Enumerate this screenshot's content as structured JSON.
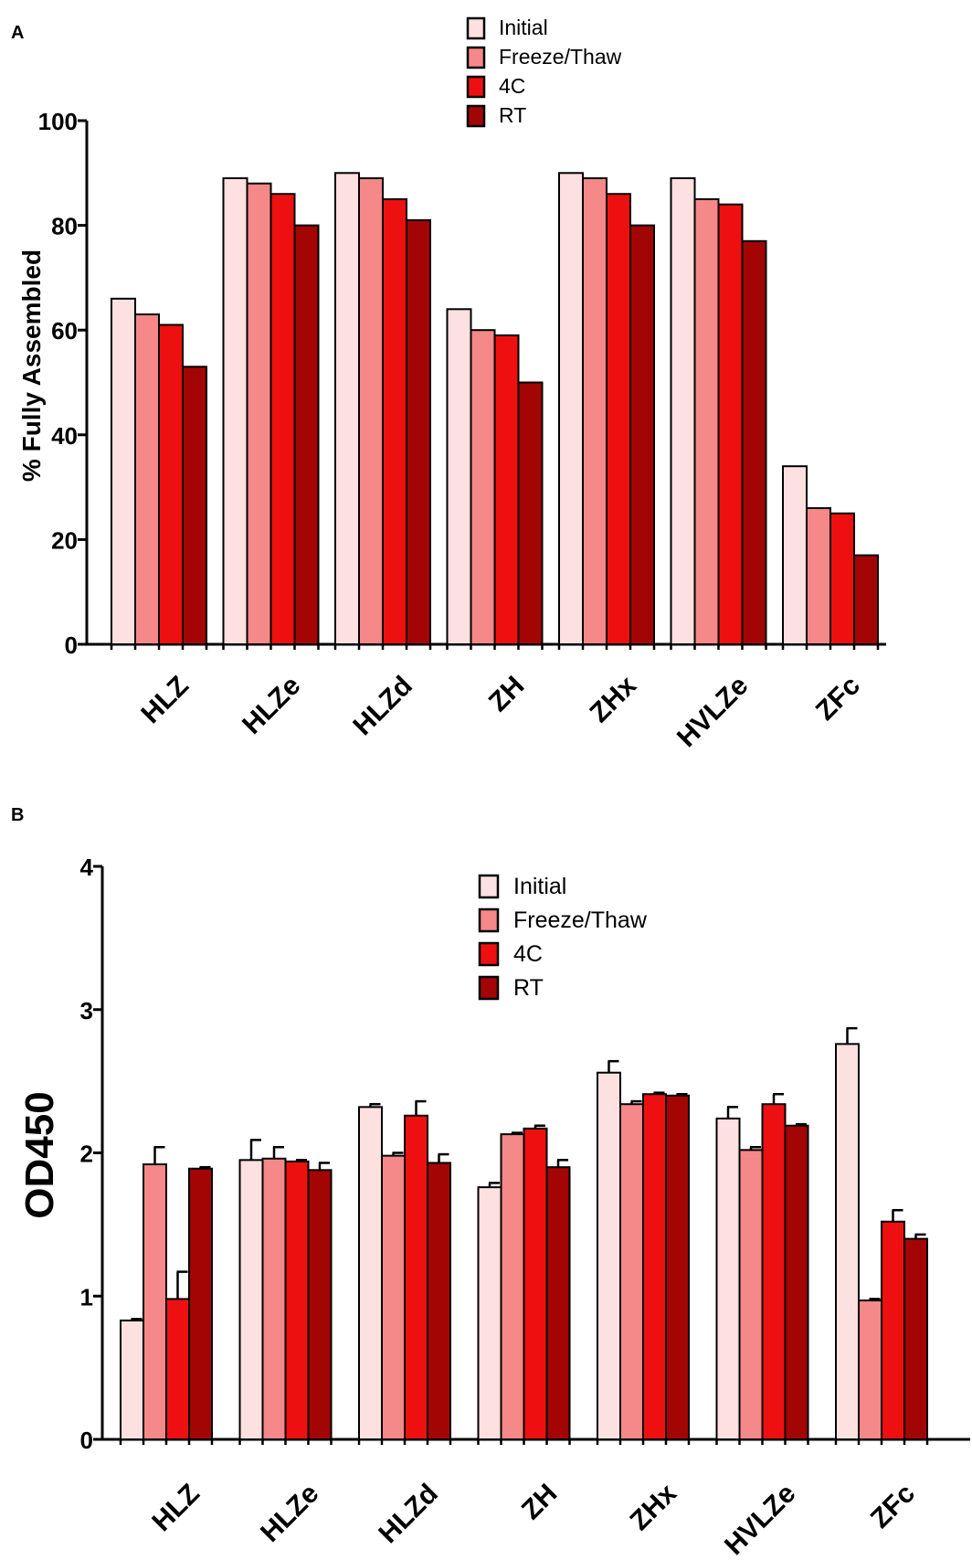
{
  "colors": {
    "Initial": "#fde0e0",
    "Freeze/Thaw": "#f58888",
    "4C": "#ee1010",
    "RT": "#a30505",
    "axis": "#000000"
  },
  "chart_data": [
    {
      "panel": "A",
      "type": "bar",
      "ylabel": "% Fully Assembled",
      "xlabel": "",
      "ylim": [
        0,
        100
      ],
      "yticks": [
        0,
        20,
        40,
        60,
        80,
        100
      ],
      "legend_position": "top-center",
      "categories": [
        "HLZ",
        "HLZe",
        "HLZd",
        "ZH",
        "ZHx",
        "HVLZe",
        "ZFc"
      ],
      "series": [
        {
          "name": "Initial",
          "values": [
            66,
            89,
            90,
            64,
            90,
            89,
            34
          ]
        },
        {
          "name": "Freeze/Thaw",
          "values": [
            63,
            88,
            89,
            60,
            89,
            85,
            26
          ]
        },
        {
          "name": "4C",
          "values": [
            61,
            86,
            85,
            59,
            86,
            84,
            25
          ]
        },
        {
          "name": "RT",
          "values": [
            53,
            80,
            81,
            50,
            80,
            77,
            17
          ]
        }
      ]
    },
    {
      "panel": "B",
      "type": "bar",
      "ylabel": "OD450",
      "xlabel": "",
      "ylim": [
        0,
        4
      ],
      "yticks": [
        0,
        1,
        2,
        3,
        4
      ],
      "legend_position": "top-center",
      "categories": [
        "HLZ",
        "HLZe",
        "HLZd",
        "ZH",
        "ZHx",
        "HVLZe",
        "ZFc"
      ],
      "series": [
        {
          "name": "Initial",
          "values": [
            0.83,
            1.95,
            2.32,
            1.76,
            2.56,
            2.24,
            2.76
          ],
          "errors": [
            0.01,
            0.14,
            0.02,
            0.03,
            0.08,
            0.08,
            0.11
          ]
        },
        {
          "name": "Freeze/Thaw",
          "values": [
            1.92,
            1.96,
            1.98,
            2.13,
            2.34,
            2.02,
            0.97
          ],
          "errors": [
            0.12,
            0.08,
            0.02,
            0.01,
            0.02,
            0.02,
            0.01
          ]
        },
        {
          "name": "4C",
          "values": [
            0.98,
            1.94,
            2.26,
            2.17,
            2.41,
            2.34,
            1.52
          ],
          "errors": [
            0.19,
            0.01,
            0.1,
            0.02,
            0.01,
            0.07,
            0.08
          ]
        },
        {
          "name": "RT",
          "values": [
            1.89,
            1.88,
            1.93,
            1.9,
            2.4,
            2.19,
            1.4
          ],
          "errors": [
            0.01,
            0.05,
            0.06,
            0.05,
            0.01,
            0.01,
            0.03
          ]
        }
      ]
    }
  ]
}
